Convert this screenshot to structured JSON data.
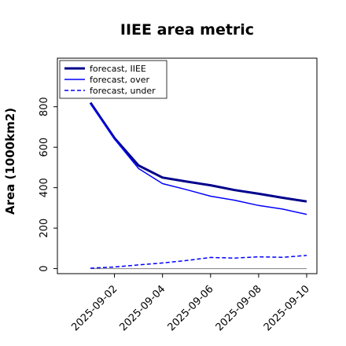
{
  "chart_data": {
    "type": "line",
    "title": "IIEE area metric",
    "xlabel": "",
    "ylabel": "Area (1000km2)",
    "x": [
      "2025-09-01",
      "2025-09-02",
      "2025-09-03",
      "2025-09-04",
      "2025-09-05",
      "2025-09-06",
      "2025-09-07",
      "2025-09-08",
      "2025-09-09",
      "2025-09-10"
    ],
    "xticks": [
      "2025-09-02",
      "2025-09-04",
      "2025-09-06",
      "2025-09-08",
      "2025-09-10"
    ],
    "highlight_tick": "2025-09-02",
    "yticks": [
      0,
      200,
      400,
      600,
      800
    ],
    "ylim": [
      -25,
      1040
    ],
    "grid": false,
    "legend_position": "top-left",
    "zero_line": true,
    "series": [
      {
        "name": "forecast, IIEE",
        "style": "solid-thick",
        "color": "#00008b",
        "values": [
          820,
          645,
          510,
          450,
          430,
          412,
          388,
          370,
          350,
          332
        ]
      },
      {
        "name": "forecast, over",
        "style": "solid",
        "color": "#0000ff",
        "values": [
          815,
          640,
          495,
          420,
          390,
          358,
          338,
          312,
          294,
          268
        ]
      },
      {
        "name": "forecast, under",
        "style": "dashed",
        "color": "#0000ff",
        "values": [
          2,
          8,
          18,
          28,
          40,
          55,
          52,
          58,
          56,
          65
        ]
      }
    ],
    "colors": {
      "zero_line": "#808080",
      "highlight": "#2ca02c",
      "axis": "#000000"
    }
  }
}
